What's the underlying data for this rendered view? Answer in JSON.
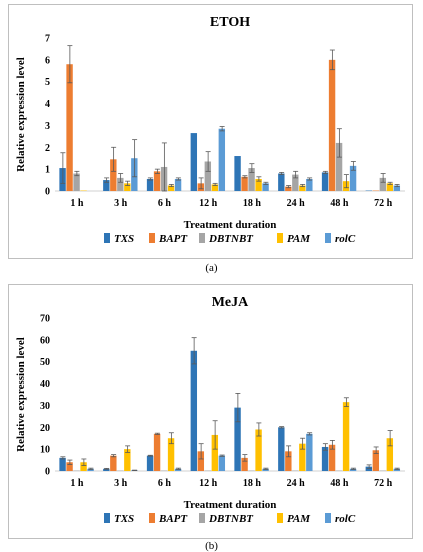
{
  "chart_data": [
    {
      "type": "bar",
      "title": "ETOH",
      "xlabel": "Treatment duration",
      "ylabel": "Relative expression level",
      "ylim": [
        0,
        7
      ],
      "yticks": [
        0,
        1,
        2,
        3,
        4,
        5,
        6,
        7
      ],
      "grid": false,
      "legend_position": "bottom",
      "error_bars": true,
      "categories": [
        "1 h",
        "3 h",
        "6 h",
        "12 h",
        "18 h",
        "24 h",
        "48 h",
        "72 h"
      ],
      "series": [
        {
          "name": "TXS",
          "color": "#2E75B6",
          "values": [
            1.05,
            0.5,
            0.55,
            2.65,
            1.6,
            0.8,
            0.85,
            0.02
          ],
          "errors": [
            0.7,
            0.1,
            0.05,
            0.0,
            0.0,
            0.05,
            0.05,
            0.0
          ]
        },
        {
          "name": "BAPT",
          "color": "#ED7D31",
          "values": [
            5.8,
            1.45,
            0.9,
            0.35,
            0.65,
            0.2,
            6.0,
            0.02
          ],
          "errors": [
            0.85,
            0.55,
            0.1,
            0.25,
            0.05,
            0.05,
            0.45,
            0.0
          ]
        },
        {
          "name": "DBTNBT",
          "color": "#A5A5A5",
          "values": [
            0.8,
            0.6,
            1.1,
            1.35,
            1.05,
            0.75,
            2.2,
            0.6
          ],
          "errors": [
            0.1,
            0.2,
            1.1,
            0.45,
            0.2,
            0.15,
            0.65,
            0.2
          ]
        },
        {
          "name": "PAM",
          "color": "#FFC000",
          "values": [
            0.02,
            0.35,
            0.25,
            0.3,
            0.55,
            0.25,
            0.45,
            0.35
          ],
          "errors": [
            0.0,
            0.1,
            0.05,
            0.05,
            0.1,
            0.05,
            0.3,
            0.05
          ]
        },
        {
          "name": "rolC",
          "color": "#5B9BD5",
          "values": [
            0.0,
            1.5,
            0.55,
            2.85,
            0.35,
            0.55,
            1.15,
            0.25
          ],
          "errors": [
            0.0,
            0.85,
            0.05,
            0.1,
            0.05,
            0.05,
            0.2,
            0.05
          ]
        }
      ]
    },
    {
      "type": "bar",
      "title": "MeJA",
      "xlabel": "Treatment duration",
      "ylabel": "Relative expression level",
      "ylim": [
        0,
        70
      ],
      "yticks": [
        0,
        10,
        20,
        30,
        40,
        50,
        60,
        70
      ],
      "grid": false,
      "legend_position": "bottom",
      "error_bars": true,
      "categories": [
        "1 h",
        "3 h",
        "6 h",
        "12 h",
        "18 h",
        "24 h",
        "48 h",
        "72 h"
      ],
      "series": [
        {
          "name": "TXS",
          "color": "#2E75B6",
          "values": [
            6,
            1,
            7,
            55,
            29,
            20,
            11,
            2
          ],
          "errors": [
            0.5,
            0.2,
            0.2,
            6,
            6.5,
            0.3,
            1.5,
            0.8
          ]
        },
        {
          "name": "BAPT",
          "color": "#ED7D31",
          "values": [
            4,
            7,
            17,
            9,
            6,
            9,
            12,
            9.5
          ],
          "errors": [
            1,
            0.5,
            0.3,
            3.5,
            1.5,
            2.5,
            2,
            1.5
          ]
        },
        {
          "name": "DBTNBT",
          "color": "#A5A5A5",
          "values": [
            0.2,
            0.2,
            0.2,
            0.2,
            0.2,
            0.2,
            0.2,
            0.2
          ],
          "errors": [
            0,
            0,
            0,
            0,
            0,
            0,
            0,
            0
          ]
        },
        {
          "name": "PAM",
          "color": "#FFC000",
          "values": [
            4,
            10,
            15,
            16.5,
            19,
            12.5,
            31.5,
            15
          ],
          "errors": [
            1.5,
            1.5,
            2.5,
            6.5,
            3,
            2.5,
            2,
            3.5
          ]
        },
        {
          "name": "rolC",
          "color": "#5B9BD5",
          "values": [
            1,
            0.3,
            1,
            7,
            1,
            17,
            1,
            1
          ],
          "errors": [
            0.3,
            0.1,
            0.3,
            0.3,
            0.3,
            0.5,
            0.3,
            0.3
          ]
        }
      ]
    }
  ],
  "captions": [
    "(a)",
    "(b)"
  ]
}
